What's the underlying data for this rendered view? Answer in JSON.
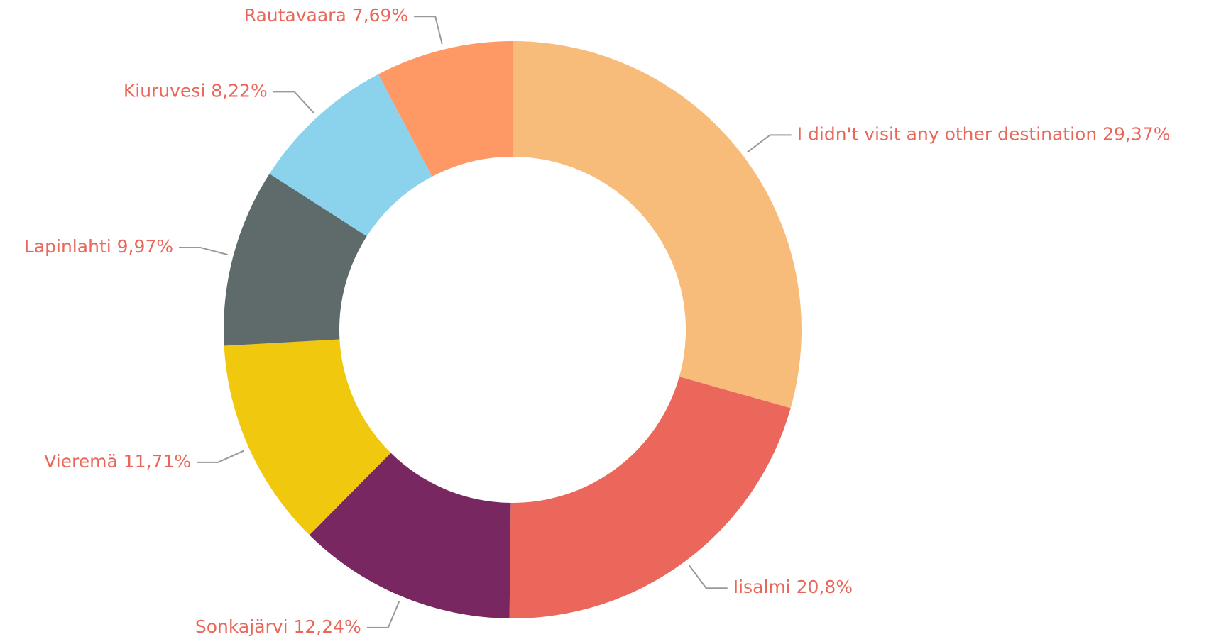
{
  "chart_data": {
    "type": "donut",
    "categories": [
      "I didn't visit any other destination",
      "Iisalmi",
      "Sonkajärvi",
      "Vieremä",
      "Lapinlahti",
      "Kiuruvesi",
      "Rautavaara"
    ],
    "values": [
      29.37,
      20.8,
      12.24,
      11.71,
      9.97,
      8.22,
      7.69
    ],
    "value_labels": [
      "29,37%",
      "20,8%",
      "12,24%",
      "11,71%",
      "9,97%",
      "8,22%",
      "7,69%"
    ],
    "colors": [
      "#f8bc7a",
      "#ec675b",
      "#792761",
      "#f0c80d",
      "#5f6b6b",
      "#8bd3ec",
      "#fe9966"
    ]
  }
}
